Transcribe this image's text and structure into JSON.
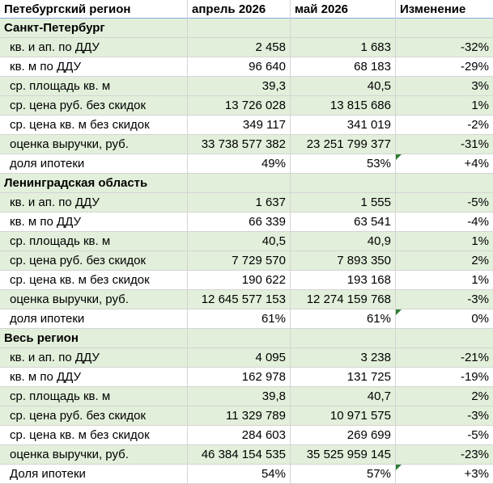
{
  "header": [
    "Петебургский регион",
    "апрель 2026",
    "май 2026",
    "Изменение"
  ],
  "sections": [
    {
      "title": "Санкт-Петербург",
      "rows": [
        {
          "label": "кв. и ап. по ДДУ",
          "apr": "2 458",
          "may": "1 683",
          "change": "-32%"
        },
        {
          "label": "кв. м по ДДУ",
          "apr": "96 640",
          "may": "68 183",
          "change": "-29%"
        },
        {
          "label": "ср. площадь кв. м",
          "apr": "39,3",
          "may": "40,5",
          "change": "3%"
        },
        {
          "label": "ср. цена руб. без скидок",
          "apr": "13 726 028",
          "may": "13 815 686",
          "change": "1%"
        },
        {
          "label": "ср. цена кв. м без скидок",
          "apr": "349 117",
          "may": "341 019",
          "change": "-2%"
        },
        {
          "label": "оценка выручки, руб.",
          "apr": "33 738 577 382",
          "may": "23 251 799 377",
          "change": "-31%"
        },
        {
          "label": "доля ипотеки",
          "apr": "49%",
          "may": "53%",
          "change": "+4%"
        }
      ]
    },
    {
      "title": "Ленинградская область",
      "rows": [
        {
          "label": "кв. и ап. по ДДУ",
          "apr": "1 637",
          "may": "1 555",
          "change": "-5%"
        },
        {
          "label": "кв. м по ДДУ",
          "apr": "66 339",
          "may": "63 541",
          "change": "-4%"
        },
        {
          "label": "ср. площадь кв. м",
          "apr": "40,5",
          "may": "40,9",
          "change": "1%"
        },
        {
          "label": "ср. цена руб. без скидок",
          "apr": "7 729 570",
          "may": "7 893 350",
          "change": "2%"
        },
        {
          "label": "ср. цена кв. м без скидок",
          "apr": "190 622",
          "may": "193 168",
          "change": "1%"
        },
        {
          "label": "оценка выручки, руб.",
          "apr": "12 645 577 153",
          "may": "12 274 159 768",
          "change": "-3%"
        },
        {
          "label": "доля ипотеки",
          "apr": "61%",
          "may": "61%",
          "change": "0%"
        }
      ]
    },
    {
      "title": "Весь регион",
      "rows": [
        {
          "label": "кв. и ап. по ДДУ",
          "apr": "4 095",
          "may": "3 238",
          "change": "-21%"
        },
        {
          "label": "кв. м по ДДУ",
          "apr": "162 978",
          "may": "131 725",
          "change": "-19%"
        },
        {
          "label": "ср. площадь кв. м",
          "apr": "39,8",
          "may": "40,7",
          "change": "2%"
        },
        {
          "label": "ср. цена руб. без скидок",
          "apr": "11 329 789",
          "may": "10 971 575",
          "change": "-3%"
        },
        {
          "label": "ср. цена кв. м без скидок",
          "apr": "284 603",
          "may": "269 699",
          "change": "-5%"
        },
        {
          "label": "оценка выручки, руб.",
          "apr": "46 384 154 535",
          "may": "35 525 959 145",
          "change": "-23%"
        },
        {
          "label": "Доля ипотеки",
          "apr": "54%",
          "may": "57%",
          "change": "+3%"
        }
      ]
    }
  ],
  "colors": {
    "shade": "#e2efda",
    "grid": "#d4d4d4",
    "header_rule": "#8faadc",
    "flag": "#2e7d32"
  }
}
